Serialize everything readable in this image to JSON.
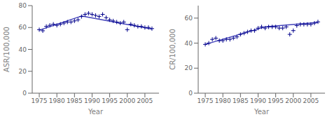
{
  "chart_data": [
    {
      "type": "scatter",
      "xlabel": "Year",
      "ylabel": "ASR/100,000",
      "xlim": [
        1973,
        2009
      ],
      "ylim": [
        0,
        80
      ],
      "xticks": [
        1975,
        1980,
        1985,
        1990,
        1995,
        2000,
        2005
      ],
      "yticks": [
        0,
        20,
        40,
        60,
        80
      ],
      "grid": false,
      "series": [
        {
          "type": "scatter",
          "color": "#00008B",
          "marker": "plus",
          "x": [
            1975,
            1976,
            1977,
            1978,
            1979,
            1980,
            1981,
            1982,
            1983,
            1984,
            1985,
            1986,
            1987,
            1988,
            1989,
            1990,
            1991,
            1992,
            1993,
            1994,
            1995,
            1996,
            1997,
            1998,
            1999,
            2000,
            2001,
            2002,
            2003,
            2004,
            2005,
            2006,
            2007
          ],
          "values": [
            58,
            57,
            61,
            62,
            63,
            62,
            63,
            64,
            65,
            65,
            66,
            67,
            70,
            72,
            73,
            72,
            71,
            70,
            72,
            69,
            67,
            66,
            65,
            64,
            65,
            58,
            63,
            62,
            61,
            61,
            60,
            60,
            59
          ]
        },
        {
          "type": "line",
          "color": "#4444BB",
          "x": [
            1975,
            1987
          ],
          "values": [
            57.5,
            70.5
          ]
        },
        {
          "type": "line",
          "color": "#4444BB",
          "x": [
            1987,
            2007
          ],
          "values": [
            70.5,
            58.5
          ]
        }
      ]
    },
    {
      "type": "scatter",
      "xlabel": "Year",
      "ylabel": "CR/100,000",
      "xlim": [
        1973,
        2009
      ],
      "ylim": [
        0,
        70
      ],
      "xticks": [
        1975,
        1980,
        1985,
        1990,
        1995,
        2000,
        2005
      ],
      "yticks": [
        0,
        20,
        40,
        60
      ],
      "grid": false,
      "series": [
        {
          "type": "scatter",
          "color": "#00008B",
          "marker": "plus",
          "x": [
            1975,
            1976,
            1977,
            1978,
            1979,
            1980,
            1981,
            1982,
            1983,
            1984,
            1985,
            1986,
            1987,
            1988,
            1989,
            1990,
            1991,
            1992,
            1993,
            1994,
            1995,
            1996,
            1997,
            1998,
            1999,
            2000,
            2001,
            2002,
            2003,
            2004,
            2005,
            2006,
            2007
          ],
          "values": [
            39,
            40,
            43,
            44,
            42,
            42,
            43,
            43,
            44,
            45,
            47,
            48,
            49,
            50,
            50,
            52,
            53,
            52,
            53,
            53,
            53,
            52,
            52,
            53,
            47,
            50,
            54,
            55,
            55,
            55,
            55,
            56,
            57
          ]
        },
        {
          "type": "line",
          "color": "#4444BB",
          "x": [
            1975,
            1992
          ],
          "values": [
            39.0,
            53.0
          ]
        },
        {
          "type": "line",
          "color": "#4444BB",
          "x": [
            1992,
            2007
          ],
          "values": [
            53.0,
            56.5
          ]
        }
      ]
    }
  ]
}
